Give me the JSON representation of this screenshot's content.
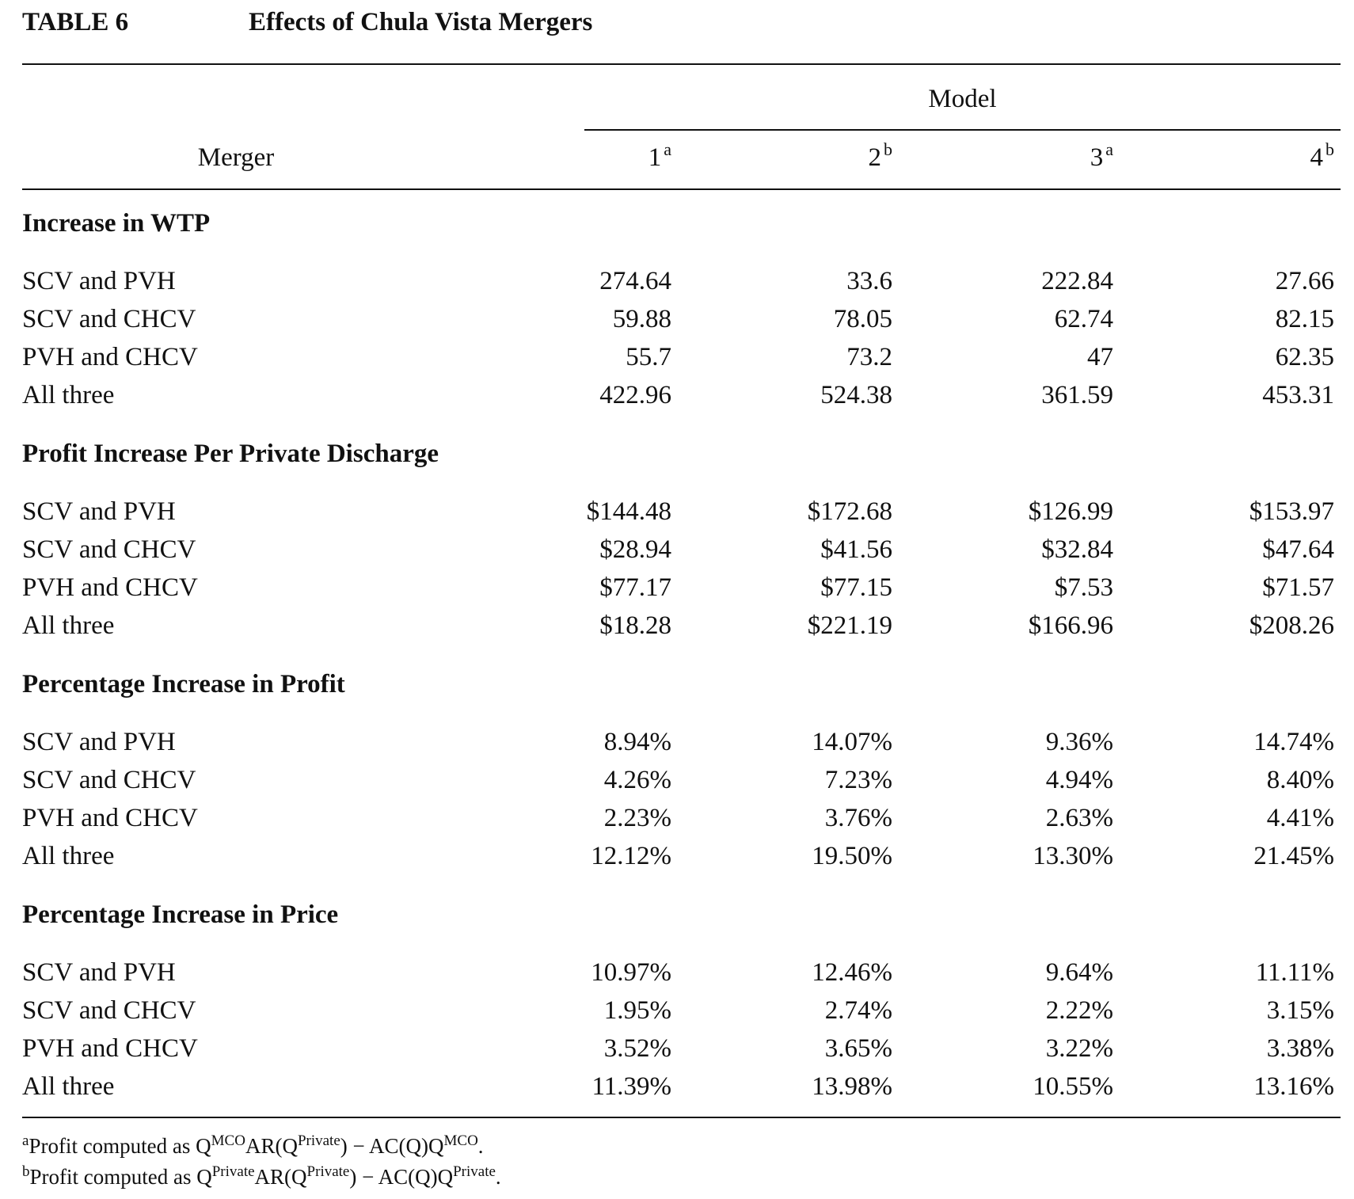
{
  "table": {
    "label": "TABLE 6",
    "title": "Effects of Chula Vista Mergers",
    "row_header": "Merger",
    "group_header": "Model",
    "columns": [
      {
        "label": "1",
        "mark": "a"
      },
      {
        "label": "2",
        "mark": "b"
      },
      {
        "label": "3",
        "mark": "a"
      },
      {
        "label": "4",
        "mark": "b"
      }
    ],
    "sections": [
      {
        "title": "Increase in WTP",
        "rows": [
          {
            "label": "SCV and PVH",
            "values": [
              "274.64",
              "33.6",
              "222.84",
              "27.66"
            ]
          },
          {
            "label": "SCV and CHCV",
            "values": [
              "59.88",
              "78.05",
              "62.74",
              "82.15"
            ]
          },
          {
            "label": "PVH and CHCV",
            "values": [
              "55.7",
              "73.2",
              "47",
              "62.35"
            ]
          },
          {
            "label": "All three",
            "values": [
              "422.96",
              "524.38",
              "361.59",
              "453.31"
            ]
          }
        ]
      },
      {
        "title": "Profit Increase Per Private Discharge",
        "rows": [
          {
            "label": "SCV and PVH",
            "values": [
              "$144.48",
              "$172.68",
              "$126.99",
              "$153.97"
            ]
          },
          {
            "label": "SCV and CHCV",
            "values": [
              "$28.94",
              "$41.56",
              "$32.84",
              "$47.64"
            ]
          },
          {
            "label": "PVH and CHCV",
            "values": [
              "$77.17",
              "$77.15",
              "$7.53",
              "$71.57"
            ]
          },
          {
            "label": "All three",
            "values": [
              "$18.28",
              "$221.19",
              "$166.96",
              "$208.26"
            ]
          }
        ]
      },
      {
        "title": "Percentage Increase in Profit",
        "rows": [
          {
            "label": "SCV and PVH",
            "values": [
              "8.94%",
              "14.07%",
              "9.36%",
              "14.74%"
            ]
          },
          {
            "label": "SCV and CHCV",
            "values": [
              "4.26%",
              "7.23%",
              "4.94%",
              "8.40%"
            ]
          },
          {
            "label": "PVH and CHCV",
            "values": [
              "2.23%",
              "3.76%",
              "2.63%",
              "4.41%"
            ]
          },
          {
            "label": "All three",
            "values": [
              "12.12%",
              "19.50%",
              "13.30%",
              "21.45%"
            ]
          }
        ]
      },
      {
        "title": "Percentage Increase in Price",
        "rows": [
          {
            "label": "SCV and PVH",
            "values": [
              "10.97%",
              "12.46%",
              "9.64%",
              "11.11%"
            ]
          },
          {
            "label": "SCV and CHCV",
            "values": [
              "1.95%",
              "2.74%",
              "2.22%",
              "3.15%"
            ]
          },
          {
            "label": "PVH and CHCV",
            "values": [
              "3.52%",
              "3.65%",
              "3.22%",
              "3.38%"
            ]
          },
          {
            "label": "All three",
            "values": [
              "11.39%",
              "13.98%",
              "10.55%",
              "13.16%"
            ]
          }
        ]
      }
    ],
    "notes": [
      {
        "mark": "a",
        "parts": [
          {
            "t": "Profit computed as Q"
          },
          {
            "sup": "MCO"
          },
          {
            "t": "AR(Q"
          },
          {
            "sup": "Private"
          },
          {
            "t": ") − AC(Q)Q"
          },
          {
            "sup": "MCO"
          },
          {
            "t": "."
          }
        ]
      },
      {
        "mark": "b",
        "parts": [
          {
            "t": "Profit computed as Q"
          },
          {
            "sup": "Private"
          },
          {
            "t": "AR(Q"
          },
          {
            "sup": "Private"
          },
          {
            "t": ") − AC(Q)Q"
          },
          {
            "sup": "Private"
          },
          {
            "t": "."
          }
        ]
      }
    ]
  }
}
